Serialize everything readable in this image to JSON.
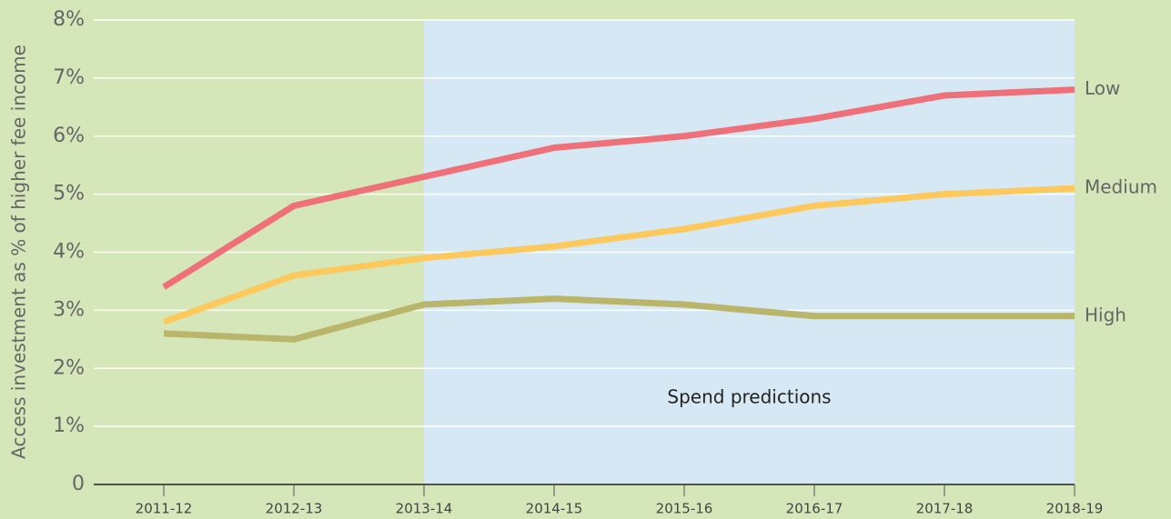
{
  "chart_data": {
    "type": "line",
    "y_label": "Access investment as % of higher fee income",
    "categories": [
      "2011-12",
      "2012-13",
      "2013-14",
      "2014-15",
      "2015-16",
      "2016-17",
      "2017-18",
      "2018-19"
    ],
    "series": [
      {
        "name": "Low",
        "color": "#f0707a",
        "values": [
          3.4,
          4.8,
          5.3,
          5.8,
          6.0,
          6.3,
          6.7,
          6.8
        ]
      },
      {
        "name": "Medium",
        "color": "#fdc95c",
        "values": [
          2.8,
          3.6,
          3.9,
          4.1,
          4.4,
          4.8,
          5.0,
          5.1
        ]
      },
      {
        "name": "High",
        "color": "#b9b56a",
        "values": [
          2.6,
          2.5,
          3.1,
          3.2,
          3.1,
          2.9,
          2.9,
          2.9
        ]
      }
    ],
    "ylim": [
      0,
      8
    ],
    "yticks": [
      0,
      {
        "value": 1,
        "label": "1%"
      },
      {
        "value": 2,
        "label": "2%"
      },
      {
        "value": 3,
        "label": "3%"
      },
      {
        "value": 4,
        "label": "4%"
      },
      {
        "value": 5,
        "label": "5%"
      },
      {
        "value": 6,
        "label": "6%"
      },
      {
        "value": 7,
        "label": "7%"
      },
      {
        "value": 8,
        "label": "8%"
      }
    ],
    "grid": true,
    "shaded_region": {
      "from": "2013-14",
      "label": "Spend predictions",
      "color": "#d6e8f3"
    },
    "background": "#d5e6b8"
  }
}
